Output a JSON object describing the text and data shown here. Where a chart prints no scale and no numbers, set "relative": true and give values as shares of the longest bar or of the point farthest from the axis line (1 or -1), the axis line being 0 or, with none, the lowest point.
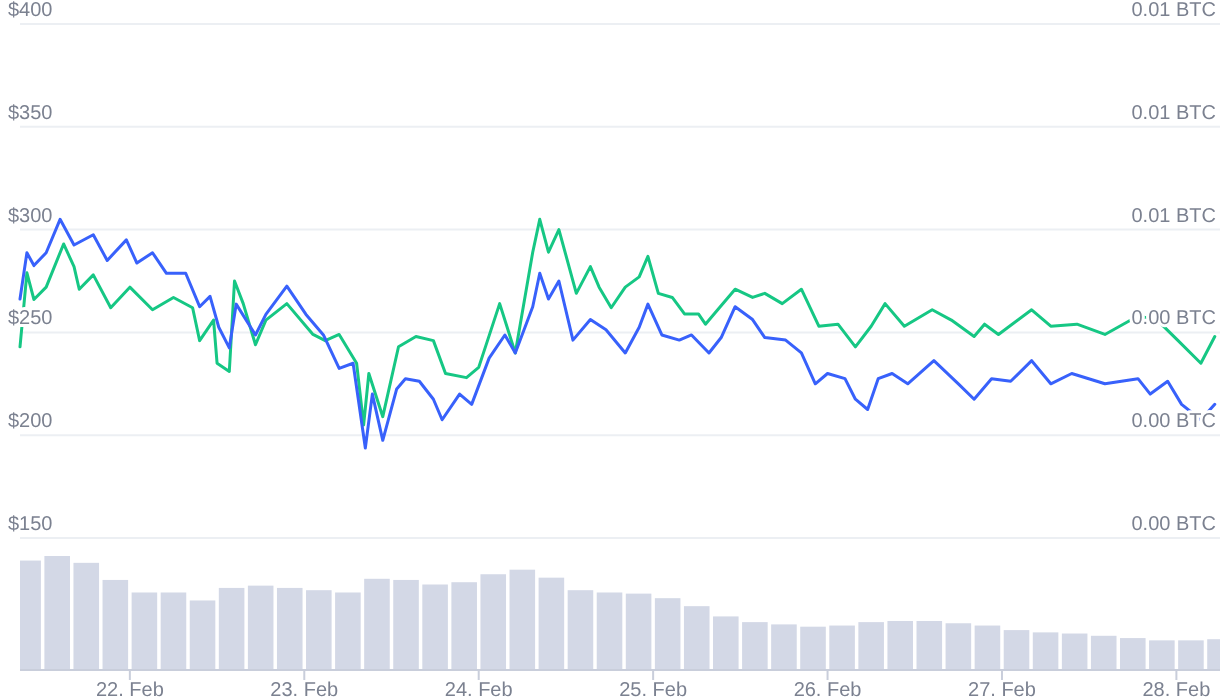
{
  "chart_data": [
    {
      "type": "line",
      "xlim": [
        "--02-21T08:53",
        "--02-28T06:00"
      ],
      "ylim": [
        150,
        400
      ],
      "yticks": [
        {
          "value": 150,
          "label": "$150"
        },
        {
          "value": 200,
          "label": "$200"
        },
        {
          "value": 250,
          "label": "$250"
        },
        {
          "value": 300,
          "label": "$300"
        },
        {
          "value": 350,
          "label": "$350"
        },
        {
          "value": 400,
          "label": "$400"
        }
      ],
      "y2lim": [
        0.004,
        0.006
      ],
      "y2ticks": [
        {
          "value": 0.004,
          "label": "0.00 BTC"
        },
        {
          "value": 0.0044,
          "label": "0.00 BTC"
        },
        {
          "value": 0.0048,
          "label": "0.00 BTC"
        },
        {
          "value": 0.0052,
          "label": "0.01 BTC"
        },
        {
          "value": 0.0056,
          "label": "0.01 BTC"
        },
        {
          "value": 0.006,
          "label": "0.01 BTC"
        }
      ],
      "grid": "y",
      "tick_labels": "y",
      "marker": "none",
      "line_style": "solid",
      "series": [
        {
          "color": "#16c784",
          "axis": "y",
          "x": [
            "--02-21T08:53",
            "--02-21T09:50",
            "--02-21T10:48",
            "--02-21T12:29",
            "--02-21T14:53",
            "--02-21T16:19",
            "--02-21T17:02",
            "--02-21T18:58",
            "--02-21T21:22",
            "--02-22T00:00",
            "--02-22T03:07",
            "--02-22T06:00",
            "--02-22T08:38",
            "--02-22T09:36",
            "--02-22T11:31",
            "--02-22T12:00",
            "--02-22T13:41",
            "--02-22T14:24",
            "--02-22T15:36",
            "--02-22T17:17",
            "--02-22T18:43",
            "--02-22T21:36",
            "--02-23T01:12",
            "--02-23T02:53",
            "--02-23T04:48",
            "--02-23T07:12",
            "--02-23T08:10",
            "--02-23T08:53",
            "--02-23T10:48",
            "--02-23T12:58",
            "--02-23T15:22",
            "--02-23T17:46",
            "--02-23T19:26",
            "--02-23T22:19",
            "--02-24T00:00",
            "--02-24T02:53",
            "--02-24T05:02",
            "--02-24T07:26",
            "--02-24T08:24",
            "--02-24T09:36",
            "--02-24T11:02",
            "--02-24T13:26",
            "--02-24T15:22",
            "--02-24T16:34",
            "--02-24T18:14",
            "--02-24T20:10",
            "--02-24T22:05",
            "--02-24T23:17",
            "--02-25T00:43",
            "--02-25T02:38",
            "--02-25T04:19",
            "--02-25T06:14",
            "--02-25T07:12",
            "--02-25T09:07",
            "--02-25T11:17",
            "--02-25T13:41",
            "--02-25T15:22",
            "--02-25T17:46",
            "--02-25T20:24",
            "--02-25T22:48",
            "--02-26T01:26",
            "--02-26T03:50",
            "--02-26T06:00",
            "--02-26T07:55",
            "--02-26T10:34",
            "--02-26T14:24",
            "--02-26T17:02",
            "--02-26T20:10",
            "--02-26T21:36",
            "--02-26T23:31",
            "--02-27T04:05",
            "--02-27T06:43",
            "--02-27T10:19",
            "--02-27T14:10",
            "--02-27T18:43",
            "--02-27T21:22",
            "--02-28T00:14",
            "--02-28T03:22",
            "--02-28T05:17"
          ],
          "values": [
            243,
            279,
            266,
            272,
            293,
            282,
            271,
            278,
            262,
            272,
            261,
            267,
            262,
            246,
            256,
            235,
            231,
            275,
            264,
            244,
            256,
            264,
            249,
            246,
            249,
            235,
            205,
            230,
            209,
            243,
            248,
            246,
            230,
            228,
            233,
            264,
            240,
            289,
            305,
            289,
            300,
            269,
            282,
            272,
            262,
            272,
            277,
            287,
            269,
            267,
            259,
            259,
            254,
            262,
            271,
            267,
            269,
            264,
            271,
            253,
            254,
            243,
            253,
            264,
            253,
            261,
            256,
            248,
            254,
            249,
            261,
            253,
            254,
            249,
            258,
            256,
            246,
            235,
            248
          ]
        },
        {
          "color": "#3861fb",
          "axis": "y2",
          "x": [
            "--02-21T08:53",
            "--02-21T09:50",
            "--02-21T10:48",
            "--02-21T12:29",
            "--02-21T14:24",
            "--02-21T16:19",
            "--02-21T18:58",
            "--02-21T20:53",
            "--02-21T23:31",
            "--02-22T00:58",
            "--02-22T03:07",
            "--02-22T05:02",
            "--02-22T07:41",
            "--02-22T09:36",
            "--02-22T11:02",
            "--02-22T12:14",
            "--02-22T13:41",
            "--02-22T14:38",
            "--02-22T17:17",
            "--02-22T18:43",
            "--02-22T21:36",
            "--02-23T00:14",
            "--02-23T02:38",
            "--02-23T04:48",
            "--02-23T06:43",
            "--02-23T08:24",
            "--02-23T09:22",
            "--02-23T10:48",
            "--02-23T12:43",
            "--02-23T13:55",
            "--02-23T15:50",
            "--02-23T17:46",
            "--02-23T18:58",
            "--02-23T21:22",
            "--02-23T23:02",
            "--02-24T01:26",
            "--02-24T03:36",
            "--02-24T05:02",
            "--02-24T07:26",
            "--02-24T08:24",
            "--02-24T09:36",
            "--02-24T11:02",
            "--02-24T12:58",
            "--02-24T15:22",
            "--02-24T17:31",
            "--02-24T20:10",
            "--02-24T22:05",
            "--02-24T23:17",
            "--02-25T01:12",
            "--02-25T03:36",
            "--02-25T05:17",
            "--02-25T07:41",
            "--02-25T09:22",
            "--02-25T11:17",
            "--02-25T13:41",
            "--02-25T15:22",
            "--02-25T18:14",
            "--02-25T20:24",
            "--02-25T22:19",
            "--02-26T00:00",
            "--02-26T02:24",
            "--02-26T03:50",
            "--02-26T05:31",
            "--02-26T06:58",
            "--02-26T08:53",
            "--02-26T11:02",
            "--02-26T13:26",
            "--02-26T14:38",
            "--02-26T18:00",
            "--02-26T20:10",
            "--02-26T22:34",
            "--02-27T01:12",
            "--02-27T04:05",
            "--02-27T06:43",
            "--02-27T09:36",
            "--02-27T14:10",
            "--02-27T18:43",
            "--02-27T20:24",
            "--02-27T22:48",
            "--02-28T00:43",
            "--02-28T03:22",
            "--02-28T05:17"
          ],
          "values": [
            0.00493,
            0.00511,
            0.00506,
            0.00511,
            0.00524,
            0.00514,
            0.00518,
            0.00508,
            0.00516,
            0.00507,
            0.00511,
            0.00503,
            0.00503,
            0.0049,
            0.00494,
            0.00482,
            0.00474,
            0.00491,
            0.00479,
            0.00487,
            0.00498,
            0.00487,
            0.00479,
            0.00466,
            0.00468,
            0.00435,
            0.00456,
            0.00438,
            0.00458,
            0.00462,
            0.00461,
            0.00454,
            0.00446,
            0.00456,
            0.00452,
            0.0047,
            0.00479,
            0.00472,
            0.0049,
            0.00503,
            0.00493,
            0.005,
            0.00477,
            0.00485,
            0.00481,
            0.00472,
            0.00482,
            0.00491,
            0.00479,
            0.00477,
            0.00479,
            0.00472,
            0.00478,
            0.0049,
            0.00485,
            0.00478,
            0.00477,
            0.00472,
            0.0046,
            0.00464,
            0.00462,
            0.00454,
            0.0045,
            0.00462,
            0.00464,
            0.0046,
            0.00466,
            0.00469,
            0.0046,
            0.00454,
            0.00462,
            0.00461,
            0.00469,
            0.0046,
            0.00464,
            0.0046,
            0.00462,
            0.00456,
            0.00461,
            0.00452,
            0.00446,
            0.00452
          ]
        }
      ]
    },
    {
      "type": "bar",
      "relative": true,
      "color": "#d3d8e6",
      "xlim": [
        "--02-21T08:53",
        "--02-28T06:00"
      ],
      "xticks": [
        {
          "value": "--02-22",
          "label": "22. Feb"
        },
        {
          "value": "--02-23",
          "label": "23. Feb"
        },
        {
          "value": "--02-24",
          "label": "24. Feb"
        },
        {
          "value": "--02-25",
          "label": "25. Feb"
        },
        {
          "value": "--02-26",
          "label": "26. Feb"
        },
        {
          "value": "--02-27",
          "label": "27. Feb"
        },
        {
          "value": "--02-28",
          "label": "28. Feb"
        }
      ],
      "tick_labels": "x",
      "x": [
        "--02-21T10:00",
        "--02-21T14:00",
        "--02-21T18:00",
        "--02-21T22:00",
        "--02-22T02:00",
        "--02-22T06:00",
        "--02-22T10:00",
        "--02-22T14:00",
        "--02-22T18:00",
        "--02-22T22:00",
        "--02-23T02:00",
        "--02-23T06:00",
        "--02-23T10:00",
        "--02-23T14:00",
        "--02-23T18:00",
        "--02-23T22:00",
        "--02-24T02:00",
        "--02-24T06:00",
        "--02-24T10:00",
        "--02-24T14:00",
        "--02-24T18:00",
        "--02-24T22:00",
        "--02-25T02:00",
        "--02-25T06:00",
        "--02-25T10:00",
        "--02-25T14:00",
        "--02-25T18:00",
        "--02-25T22:00",
        "--02-26T02:00",
        "--02-26T06:00",
        "--02-26T10:00",
        "--02-26T14:00",
        "--02-26T18:00",
        "--02-26T22:00",
        "--02-27T02:00",
        "--02-27T06:00",
        "--02-27T10:00",
        "--02-27T14:00",
        "--02-27T18:00",
        "--02-27T22:00",
        "--02-28T02:00",
        "--02-28T06:00"
      ],
      "values": [
        0.96,
        1,
        0.94,
        0.79,
        0.68,
        0.68,
        0.61,
        0.72,
        0.74,
        0.72,
        0.7,
        0.68,
        0.8,
        0.79,
        0.75,
        0.77,
        0.84,
        0.88,
        0.81,
        0.7,
        0.68,
        0.67,
        0.63,
        0.56,
        0.47,
        0.42,
        0.4,
        0.38,
        0.39,
        0.42,
        0.43,
        0.43,
        0.41,
        0.39,
        0.35,
        0.33,
        0.32,
        0.3,
        0.28,
        0.26,
        0.26,
        0.27
      ]
    }
  ]
}
